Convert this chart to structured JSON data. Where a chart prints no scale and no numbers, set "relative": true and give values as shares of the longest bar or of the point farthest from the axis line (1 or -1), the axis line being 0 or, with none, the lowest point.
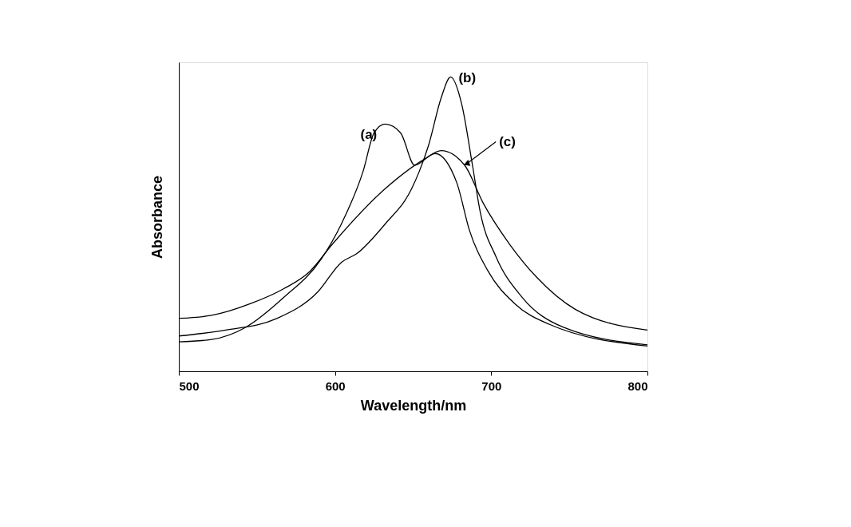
{
  "chart_data": {
    "type": "line",
    "relative": true,
    "xlabel": "Wavelength/nm",
    "ylabel": "Absorbance",
    "xlim": [
      500,
      800
    ],
    "xticks": [
      500,
      600,
      700,
      800
    ],
    "grid": false,
    "legend": false,
    "marker": "none",
    "line_style": "solid",
    "series": [
      {
        "name": "(a)",
        "color": "#000000",
        "x": [
          500,
          521,
          543,
          567,
          591,
          604,
          618,
          625,
          632,
          642,
          651,
          664,
          678,
          686,
          698,
          715,
          737,
          800
        ],
        "values": [
          0.1,
          0.108,
          0.15,
          0.25,
          0.38,
          0.5,
          0.68,
          0.81,
          0.84,
          0.81,
          0.7,
          0.74,
          0.64,
          0.48,
          0.34,
          0.23,
          0.16,
          0.086
        ]
      },
      {
        "name": "(b)",
        "color": "#000000",
        "x": [
          500,
          530,
          563,
          589,
          604,
          614,
          632,
          649,
          654,
          660,
          668,
          674,
          681,
          688,
          693,
          703,
          720,
          746,
          800
        ],
        "values": [
          0.12,
          0.14,
          0.18,
          0.27,
          0.37,
          0.4,
          0.5,
          0.62,
          0.68,
          0.77,
          0.93,
          1.0,
          0.91,
          0.7,
          0.54,
          0.39,
          0.25,
          0.15,
          0.09
        ]
      },
      {
        "name": "(c)",
        "color": "#000000",
        "x": [
          500,
          521,
          546,
          567,
          584,
          598,
          632,
          657,
          668,
          683,
          695,
          712,
          729,
          754,
          800
        ],
        "values": [
          0.18,
          0.19,
          0.23,
          0.28,
          0.34,
          0.43,
          0.62,
          0.72,
          0.75,
          0.7,
          0.57,
          0.43,
          0.32,
          0.21,
          0.14
        ]
      }
    ]
  }
}
